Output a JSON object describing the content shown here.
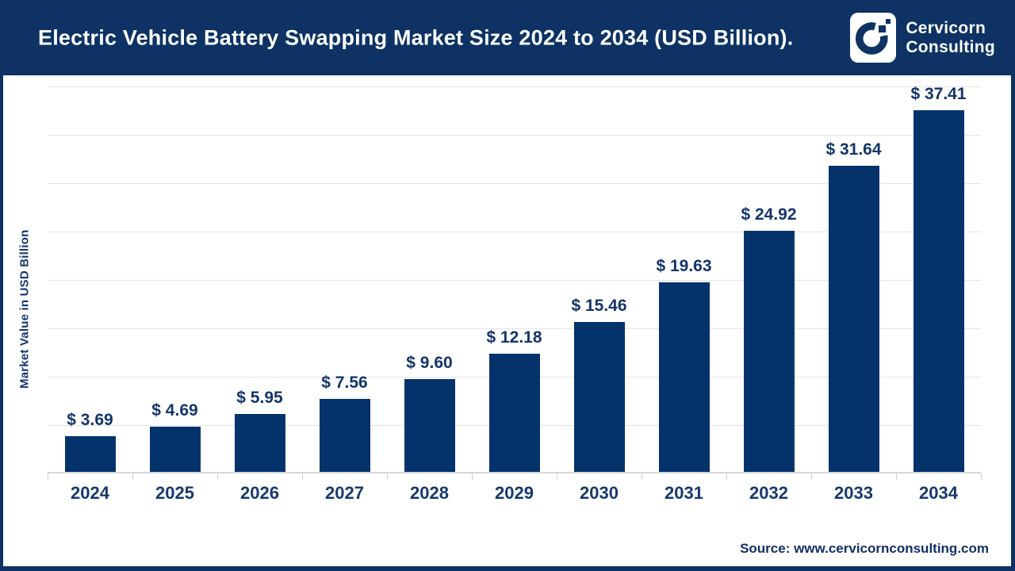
{
  "header": {
    "title": "Electric Vehicle Battery Swapping Market Size 2024 to 2034 (USD Billion).",
    "brand": {
      "logo_icon": "cervicorn-c-mark",
      "name_line1": "Cervicorn",
      "name_line2": "Consulting"
    }
  },
  "chart_data": {
    "type": "bar",
    "title": "Electric Vehicle Battery Swapping Market Size 2024 to 2034 (USD Billion).",
    "categories": [
      "2024",
      "2025",
      "2026",
      "2027",
      "2028",
      "2029",
      "2030",
      "2031",
      "2032",
      "2033",
      "2034"
    ],
    "values": [
      3.69,
      4.69,
      5.95,
      7.56,
      9.6,
      12.18,
      15.46,
      19.63,
      24.92,
      31.64,
      37.41
    ],
    "value_labels": [
      "$ 3.69",
      "$ 4.69",
      "$ 5.95",
      "$ 7.56",
      "$ 9.60",
      "$ 12.18",
      "$ 15.46",
      "$ 19.63",
      "$ 24.92",
      "$ 31.64",
      "$ 37.41"
    ],
    "xlabel": "",
    "ylabel": "Market Value in USD Billion",
    "ylim": [
      0,
      41
    ],
    "gridline_step": 5,
    "gridline_max": 40,
    "grid": true,
    "legend": false,
    "y_tick_labels_shown": false,
    "bar_color": "#04336c"
  },
  "footer": {
    "source": "Source: www.cervicornconsulting.com"
  },
  "colors": {
    "header_bg": "#0d3263",
    "bar": "#04336c",
    "value_label_text": "#14356b",
    "year_label_text": "#17396f",
    "grid": "#e4e4e4",
    "axis": "#d6d6d6",
    "background": "#ffffff"
  }
}
